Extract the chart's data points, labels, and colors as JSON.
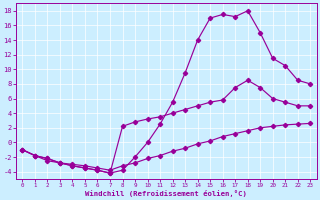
{
  "xlabel": "Windchill (Refroidissement éolien,°C)",
  "background_color": "#cceeff",
  "line_color": "#990099",
  "xlim": [
    -0.5,
    23.5
  ],
  "ylim": [
    -5,
    19
  ],
  "xticks": [
    0,
    1,
    2,
    3,
    4,
    5,
    6,
    7,
    8,
    9,
    10,
    11,
    12,
    13,
    14,
    15,
    16,
    17,
    18,
    19,
    20,
    21,
    22,
    23
  ],
  "yticks": [
    -4,
    -2,
    0,
    2,
    4,
    6,
    8,
    10,
    12,
    14,
    16,
    18
  ],
  "line1_x": [
    0,
    1,
    2,
    3,
    4,
    5,
    6,
    7,
    8,
    9,
    10,
    11,
    12,
    13,
    14,
    15,
    16,
    17,
    18,
    19,
    20,
    21,
    22,
    23
  ],
  "line1_y": [
    -1.0,
    -1.8,
    -2.2,
    -2.8,
    -3.2,
    -3.5,
    -3.8,
    -4.2,
    -3.8,
    -2.0,
    0.0,
    2.5,
    5.5,
    9.5,
    14.0,
    17.0,
    17.5,
    17.2,
    18.0,
    15.0,
    11.5,
    10.5,
    8.5,
    8.0
  ],
  "line2_x": [
    0,
    1,
    2,
    3,
    4,
    5,
    6,
    7,
    8,
    9,
    10,
    11,
    12,
    13,
    14,
    15,
    16,
    17,
    18,
    19,
    20,
    21,
    22,
    23
  ],
  "line2_y": [
    -1.0,
    -1.8,
    -2.2,
    -2.8,
    -3.2,
    -3.5,
    -3.8,
    -4.2,
    2.2,
    2.8,
    3.2,
    3.5,
    4.0,
    4.5,
    5.0,
    5.5,
    5.8,
    7.5,
    8.5,
    7.5,
    6.0,
    5.5,
    5.0,
    5.0
  ],
  "line3_x": [
    0,
    1,
    2,
    3,
    4,
    5,
    6,
    7,
    8,
    9,
    10,
    11,
    12,
    13,
    14,
    15,
    16,
    17,
    18,
    19,
    20,
    21,
    22,
    23
  ],
  "line3_y": [
    -1.0,
    -1.8,
    -2.5,
    -2.8,
    -3.0,
    -3.2,
    -3.5,
    -3.8,
    -3.2,
    -2.8,
    -2.2,
    -1.8,
    -1.2,
    -0.8,
    -0.2,
    0.2,
    0.8,
    1.2,
    1.6,
    2.0,
    2.2,
    2.4,
    2.5,
    2.6
  ]
}
